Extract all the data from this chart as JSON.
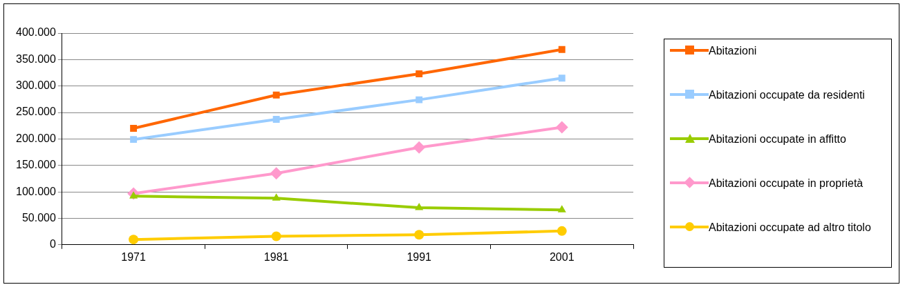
{
  "chart_data": {
    "type": "line",
    "categories": [
      "1971",
      "1981",
      "1991",
      "2001"
    ],
    "series": [
      {
        "name": "Abitazioni",
        "color": "#ff6600",
        "marker": "square",
        "values": [
          220000,
          283000,
          323000,
          369000
        ]
      },
      {
        "name": "Abitazioni occupate da residenti",
        "color": "#99ccff",
        "marker": "square",
        "values": [
          199000,
          237000,
          274000,
          315000
        ]
      },
      {
        "name": "Abitazioni occupate in affitto",
        "color": "#99cc00",
        "marker": "triangle",
        "values": [
          92000,
          88000,
          70000,
          66000
        ]
      },
      {
        "name": "Abitazioni occupate in proprietà",
        "color": "#ff99cc",
        "marker": "diamond",
        "values": [
          97000,
          135000,
          184000,
          222000
        ]
      },
      {
        "name": "Abitazioni occupate ad altro titolo",
        "color": "#ffcc00",
        "marker": "circle",
        "values": [
          10000,
          16000,
          19000,
          26000
        ]
      }
    ],
    "ylim": [
      0,
      400000
    ],
    "yticks": [
      {
        "value": 0,
        "label": "0"
      },
      {
        "value": 50000,
        "label": "50.000"
      },
      {
        "value": 100000,
        "label": "100.000"
      },
      {
        "value": 150000,
        "label": "150.000"
      },
      {
        "value": 200000,
        "label": "200.000"
      },
      {
        "value": 250000,
        "label": "250.000"
      },
      {
        "value": 300000,
        "label": "300.000"
      },
      {
        "value": 350000,
        "label": "350.000"
      },
      {
        "value": 400000,
        "label": "400.000"
      }
    ],
    "grid": "y",
    "legend": "right",
    "line_style": "solid"
  }
}
